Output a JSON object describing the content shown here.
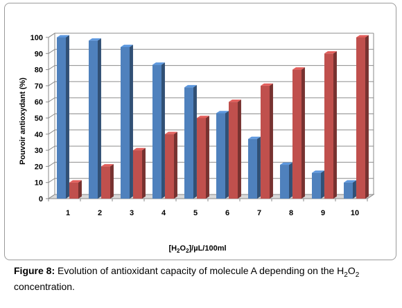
{
  "chart_data": {
    "type": "bar",
    "categories": [
      "1",
      "2",
      "3",
      "4",
      "5",
      "6",
      "7",
      "8",
      "9",
      "10"
    ],
    "series": [
      {
        "name": "",
        "color": "#4f81bd",
        "values": [
          100,
          98,
          94,
          83,
          69,
          53,
          37,
          21,
          16,
          10
        ]
      },
      {
        "name": "",
        "color": "#c0504d",
        "values": [
          10,
          20,
          30,
          40,
          50,
          60,
          70,
          80,
          90,
          100
        ]
      }
    ],
    "title": "",
    "xlabel_main": "[H",
    "xlabel_sub1": "2",
    "xlabel_mid": "O",
    "xlabel_sub2": "2",
    "xlabel_end": "]/µL/100ml",
    "ylabel": "Pouvoir antioxydant (%)",
    "ylim": [
      0,
      100
    ],
    "yticks": [
      0,
      10,
      20,
      30,
      40,
      50,
      60,
      70,
      80,
      90,
      100
    ],
    "grid": true,
    "legend": "none"
  },
  "caption": {
    "label": "Figure 8:",
    "text_before": " Evolution of antioxidant capacity of molecule A depending on the H",
    "sub1": "2",
    "mid": "O",
    "sub2": "2",
    "text_after": " concentration."
  }
}
